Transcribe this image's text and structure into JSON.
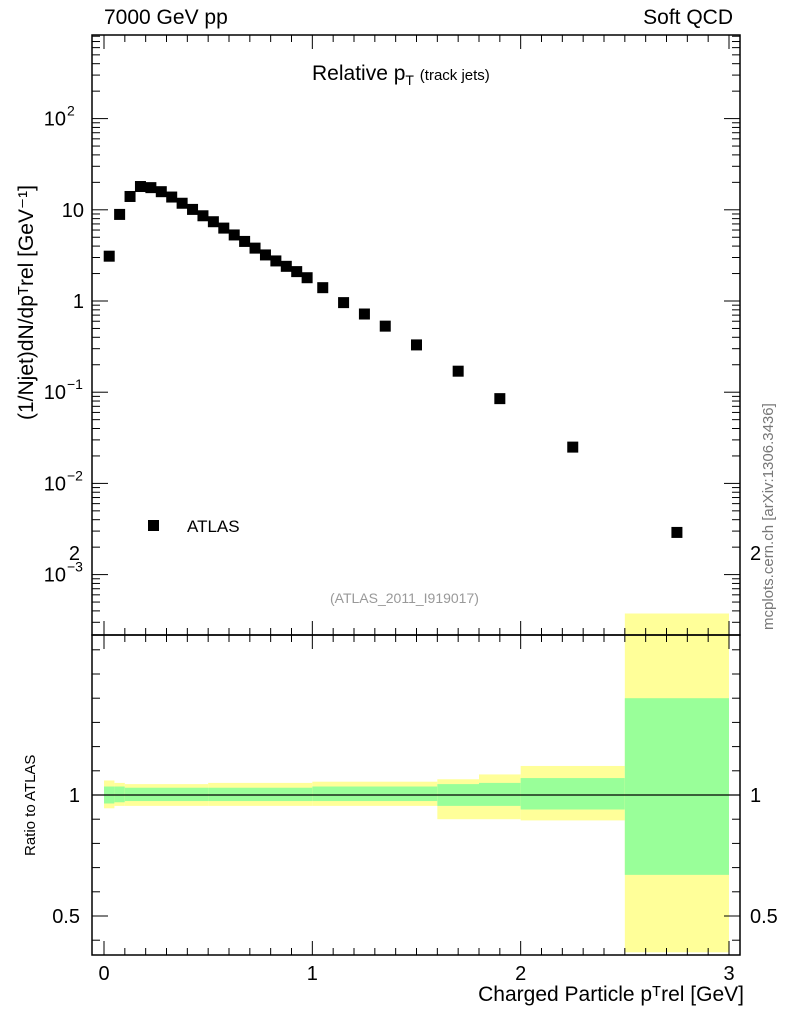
{
  "header": {
    "left": "7000 GeV pp",
    "right": "Soft QCD"
  },
  "title_main": "Relative p",
  "title_sub": "T",
  "title_suffix": "(track jets)",
  "reference_label": "(ATLAS_2011_I919017)",
  "watermark": "mcplots.cern.ch [arXiv:1306.3436]",
  "ylabel_main": "(1/Njet)dN/dpᵀrel [GeV⁻¹]",
  "ylabel_ratio": "Ratio to ATLAS",
  "xlabel": "Charged Particle pᵀrel [GeV]",
  "legend": {
    "marker_label": "ATLAS"
  },
  "colors": {
    "band_inner": "#99ff99",
    "band_outer": "#ffff99",
    "marker": "#000000"
  },
  "chart_data": [
    {
      "type": "scatter",
      "panel": "main",
      "yscale": "log",
      "xlim": [
        -0.06,
        3.0
      ],
      "ylim": [
        0.0003,
        900
      ],
      "x_ticks": [
        "0",
        "1",
        "2",
        "3"
      ],
      "y_ticks": [
        "10^-3",
        "10^-2",
        "10^-1",
        "1",
        "10",
        "10^2"
      ],
      "series": [
        {
          "name": "ATLAS",
          "x": [
            0.025,
            0.075,
            0.125,
            0.175,
            0.225,
            0.275,
            0.325,
            0.375,
            0.425,
            0.475,
            0.525,
            0.575,
            0.625,
            0.675,
            0.725,
            0.775,
            0.825,
            0.875,
            0.925,
            0.975,
            1.05,
            1.15,
            1.25,
            1.35,
            1.5,
            1.7,
            1.9,
            2.25,
            2.75
          ],
          "y": [
            3.1,
            8.9,
            14.0,
            18.0,
            17.5,
            15.8,
            13.8,
            11.8,
            10.1,
            8.6,
            7.4,
            6.3,
            5.3,
            4.5,
            3.8,
            3.2,
            2.75,
            2.4,
            2.1,
            1.8,
            1.4,
            0.96,
            0.72,
            0.53,
            0.33,
            0.17,
            0.085,
            0.025,
            0.0029
          ]
        }
      ]
    },
    {
      "type": "area",
      "panel": "ratio",
      "xlim": [
        -0.06,
        3.0
      ],
      "ylim": [
        0.35,
        2.3
      ],
      "y_ticks": [
        "0.5",
        "1",
        "2"
      ],
      "reference_line": 1,
      "bins": [
        {
          "lo": 0.0,
          "hi": 0.05,
          "inner": [
            0.965,
            1.035
          ],
          "outer": [
            0.945,
            1.06
          ]
        },
        {
          "lo": 0.05,
          "hi": 0.1,
          "inner": [
            0.97,
            1.035
          ],
          "outer": [
            0.955,
            1.05
          ]
        },
        {
          "lo": 0.1,
          "hi": 0.5,
          "inner": [
            0.975,
            1.03
          ],
          "outer": [
            0.955,
            1.045
          ]
        },
        {
          "lo": 0.5,
          "hi": 1.0,
          "inner": [
            0.975,
            1.03
          ],
          "outer": [
            0.955,
            1.05
          ]
        },
        {
          "lo": 1.0,
          "hi": 1.6,
          "inner": [
            0.975,
            1.035
          ],
          "outer": [
            0.955,
            1.055
          ]
        },
        {
          "lo": 1.6,
          "hi": 1.8,
          "inner": [
            0.955,
            1.045
          ],
          "outer": [
            0.9,
            1.065
          ]
        },
        {
          "lo": 1.8,
          "hi": 2.0,
          "inner": [
            0.955,
            1.05
          ],
          "outer": [
            0.9,
            1.085
          ]
        },
        {
          "lo": 2.0,
          "hi": 2.5,
          "inner": [
            0.94,
            1.07
          ],
          "outer": [
            0.895,
            1.12
          ]
        },
        {
          "lo": 2.5,
          "hi": 3.0,
          "inner": [
            0.67,
            1.4
          ],
          "outer": [
            0.35,
            1.75
          ]
        }
      ]
    }
  ]
}
